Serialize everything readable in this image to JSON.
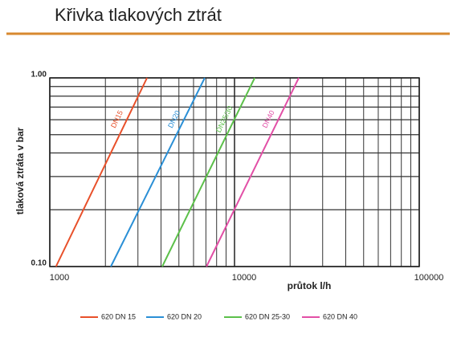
{
  "chart_data": {
    "type": "line",
    "title": "Křivka tlakových ztrát",
    "x_label": "průtok l/h",
    "y_label": "tlaková ztráta v bar",
    "xscale": "log",
    "yscale": "log",
    "grid": true,
    "minor_grid": true,
    "legend": "bottom",
    "xlim": [
      1000,
      100000
    ],
    "xticks": [
      1000,
      10000,
      100000
    ],
    "ylim": [
      0.1,
      1
    ],
    "yticks": [
      {
        "value": 0.1,
        "label": "0.10"
      },
      {
        "value": 1,
        "label": "1.00"
      }
    ],
    "series": [
      {
        "name": "620 DN 15",
        "line_label": "DN15",
        "color": "#e8502a",
        "x": [
          1080,
          3360
        ],
        "values": [
          0.1,
          1
        ]
      },
      {
        "name": "620 DN 20",
        "line_label": "DN20",
        "color": "#2a8fd6",
        "x": [
          2140,
          6900
        ],
        "values": [
          0.1,
          1
        ]
      },
      {
        "name": "620 DN 25-30",
        "line_label": "DN25/30",
        "color": "#5cc04a",
        "x": [
          4060,
          12860
        ],
        "values": [
          0.1,
          1
        ]
      },
      {
        "name": "620 DN 40",
        "line_label": "DN40",
        "color": "#e24fa6",
        "x": [
          7050,
          22280
        ],
        "values": [
          0.1,
          1
        ]
      }
    ]
  }
}
